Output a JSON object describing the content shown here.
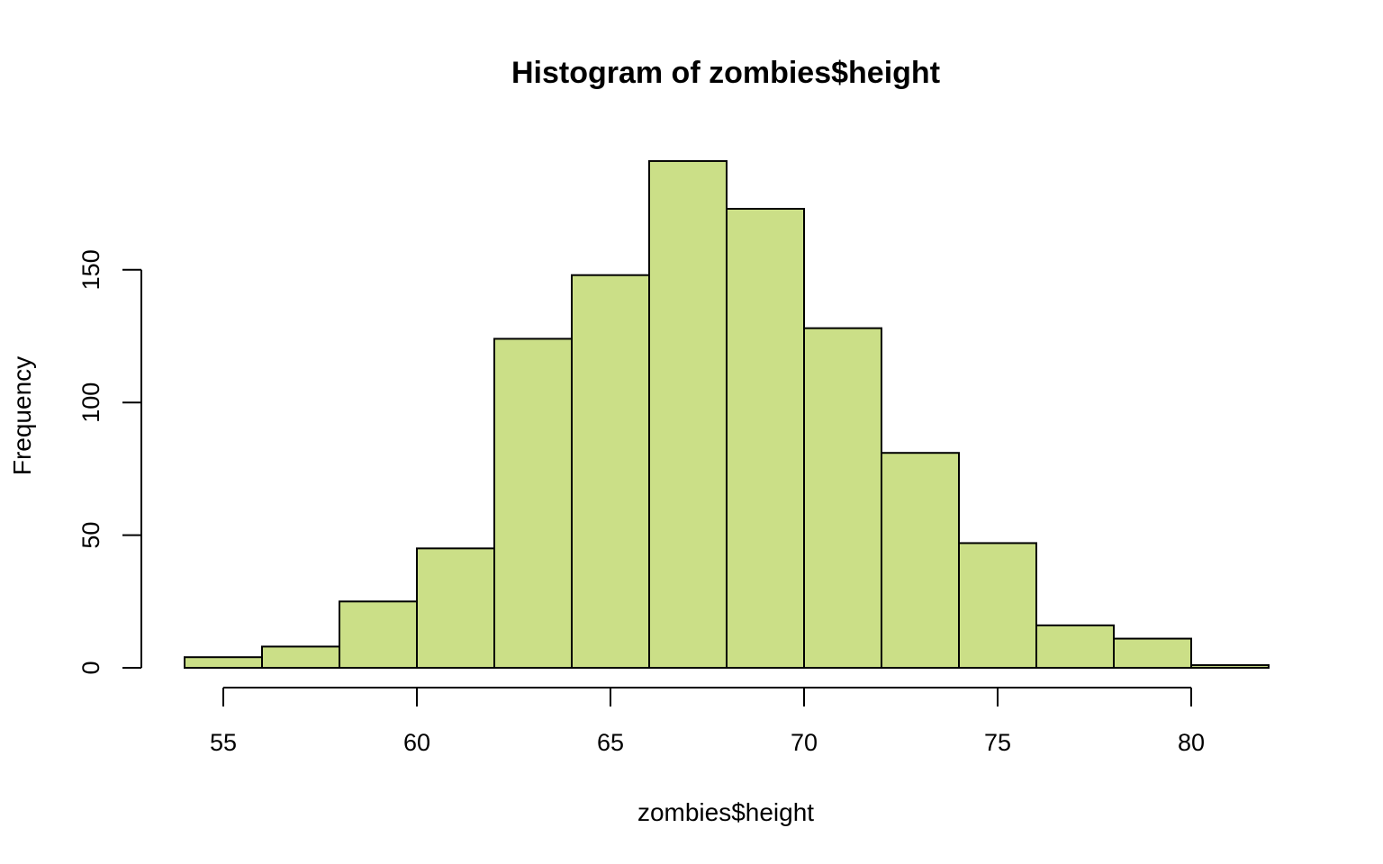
{
  "chart_data": {
    "type": "bar",
    "title": "Histogram of zombies$height",
    "xlabel": "zombies$height",
    "ylabel": "Frequency",
    "bar_color": "#cbdf87",
    "border_color": "#000000",
    "bins": [
      {
        "x0": 54,
        "x1": 56,
        "count": 4
      },
      {
        "x0": 56,
        "x1": 58,
        "count": 8
      },
      {
        "x0": 58,
        "x1": 60,
        "count": 25
      },
      {
        "x0": 60,
        "x1": 62,
        "count": 45
      },
      {
        "x0": 62,
        "x1": 64,
        "count": 124
      },
      {
        "x0": 64,
        "x1": 66,
        "count": 148
      },
      {
        "x0": 66,
        "x1": 68,
        "count": 191
      },
      {
        "x0": 68,
        "x1": 70,
        "count": 173
      },
      {
        "x0": 70,
        "x1": 72,
        "count": 128
      },
      {
        "x0": 72,
        "x1": 74,
        "count": 81
      },
      {
        "x0": 74,
        "x1": 76,
        "count": 47
      },
      {
        "x0": 76,
        "x1": 78,
        "count": 16
      },
      {
        "x0": 78,
        "x1": 80,
        "count": 11
      },
      {
        "x0": 80,
        "x1": 82,
        "count": 1
      }
    ],
    "xticks": [
      "55",
      "60",
      "65",
      "70",
      "75",
      "80"
    ],
    "yticks": [
      "0",
      "50",
      "100",
      "150"
    ],
    "xlim": [
      54,
      82
    ],
    "ylim": [
      0,
      191
    ],
    "grid": false
  }
}
